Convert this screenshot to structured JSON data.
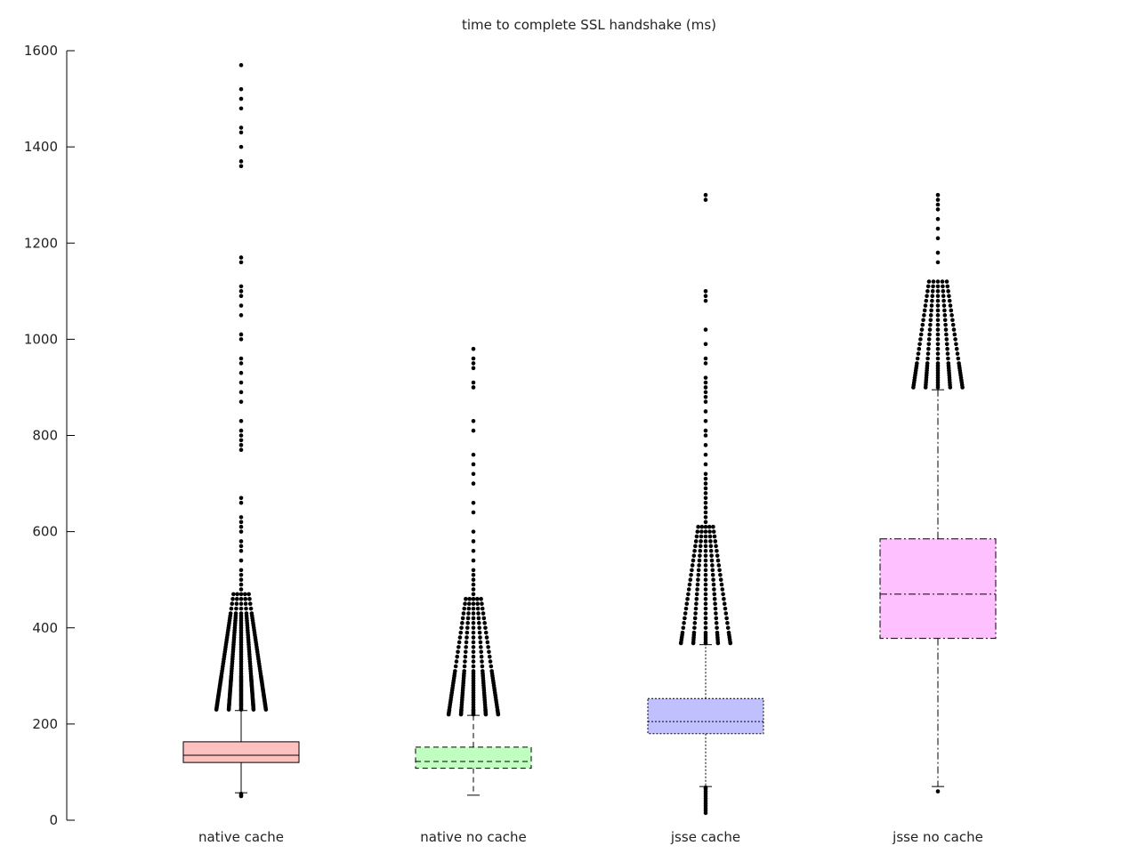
{
  "chart_data": {
    "type": "box",
    "title": "time to complete SSL handshake (ms)",
    "xlabel": "",
    "ylabel": "",
    "ylim": [
      0,
      1600
    ],
    "yticks": [
      0,
      200,
      400,
      600,
      800,
      1000,
      1200,
      1400,
      1600
    ],
    "grid": false,
    "legend": "none",
    "categories": [
      "native cache",
      "native no cache",
      "jsse cache",
      "jsse no cache"
    ],
    "series": [
      {
        "q1": 120,
        "median": 135,
        "q3": 163,
        "whisker_low": 57,
        "whisker_high": 228,
        "style": "solid",
        "fill": "#ffc0c0",
        "outliers_high": [
          230,
          232,
          235,
          238,
          240,
          242,
          245,
          248,
          250,
          252,
          255,
          258,
          260,
          262,
          265,
          268,
          270,
          272,
          275,
          278,
          280,
          282,
          285,
          288,
          290,
          292,
          295,
          298,
          300,
          305,
          310,
          315,
          320,
          325,
          330,
          335,
          340,
          345,
          350,
          355,
          360,
          365,
          370,
          375,
          380,
          385,
          390,
          395,
          400,
          405,
          410,
          415,
          420,
          425,
          430,
          440,
          450,
          460,
          470,
          480,
          490,
          500,
          510,
          520,
          540,
          560,
          570,
          580,
          600,
          610,
          620,
          630,
          660,
          670,
          770,
          780,
          790,
          800,
          810,
          830,
          870,
          890,
          910,
          930,
          950,
          960,
          1000,
          1010,
          1050,
          1070,
          1090,
          1100,
          1110,
          1160,
          1170,
          1360,
          1370,
          1400,
          1430,
          1440,
          1480,
          1500,
          1520,
          1570
        ],
        "outliers_low": [
          50,
          52,
          55
        ]
      },
      {
        "q1": 108,
        "median": 122,
        "q3": 152,
        "whisker_low": 52,
        "whisker_high": 218,
        "style": "dashed",
        "fill": "#c0ffc0",
        "outliers_high": [
          220,
          222,
          225,
          228,
          230,
          235,
          240,
          245,
          250,
          255,
          260,
          265,
          270,
          275,
          280,
          285,
          290,
          295,
          300,
          305,
          310,
          320,
          330,
          340,
          350,
          360,
          370,
          380,
          390,
          400,
          410,
          420,
          430,
          440,
          450,
          460,
          470,
          480,
          490,
          500,
          510,
          520,
          540,
          560,
          580,
          600,
          640,
          660,
          700,
          720,
          740,
          760,
          810,
          830,
          900,
          910,
          940,
          950,
          960,
          980
        ]
      },
      {
        "q1": 180,
        "median": 205,
        "q3": 253,
        "whisker_low": 70,
        "whisker_high": 365,
        "style": "dotted",
        "fill": "#c0c0ff",
        "outliers_high": [
          368,
          370,
          375,
          380,
          385,
          390,
          400,
          410,
          420,
          430,
          440,
          450,
          460,
          470,
          480,
          490,
          500,
          510,
          520,
          530,
          540,
          550,
          560,
          570,
          580,
          590,
          600,
          610,
          620,
          630,
          640,
          650,
          660,
          670,
          680,
          690,
          700,
          710,
          720,
          740,
          760,
          780,
          800,
          810,
          830,
          850,
          870,
          880,
          890,
          900,
          910,
          920,
          950,
          960,
          990,
          1020,
          1080,
          1090,
          1100,
          1290,
          1300
        ],
        "outliers_low": [
          15,
          20,
          25,
          30,
          35,
          40,
          45,
          50,
          55,
          60,
          65,
          68
        ]
      },
      {
        "q1": 378,
        "median": 470,
        "q3": 585,
        "whisker_low": 70,
        "whisker_high": 895,
        "style": "dashdot",
        "fill": "#ffc0ff",
        "outliers_high": [
          900,
          905,
          910,
          915,
          920,
          925,
          930,
          935,
          940,
          945,
          950,
          960,
          970,
          980,
          990,
          1000,
          1010,
          1020,
          1030,
          1040,
          1050,
          1060,
          1070,
          1080,
          1090,
          1100,
          1110,
          1120,
          1160,
          1180,
          1210,
          1230,
          1250,
          1270,
          1280,
          1290,
          1300
        ],
        "outliers_low": [
          60
        ]
      }
    ]
  }
}
